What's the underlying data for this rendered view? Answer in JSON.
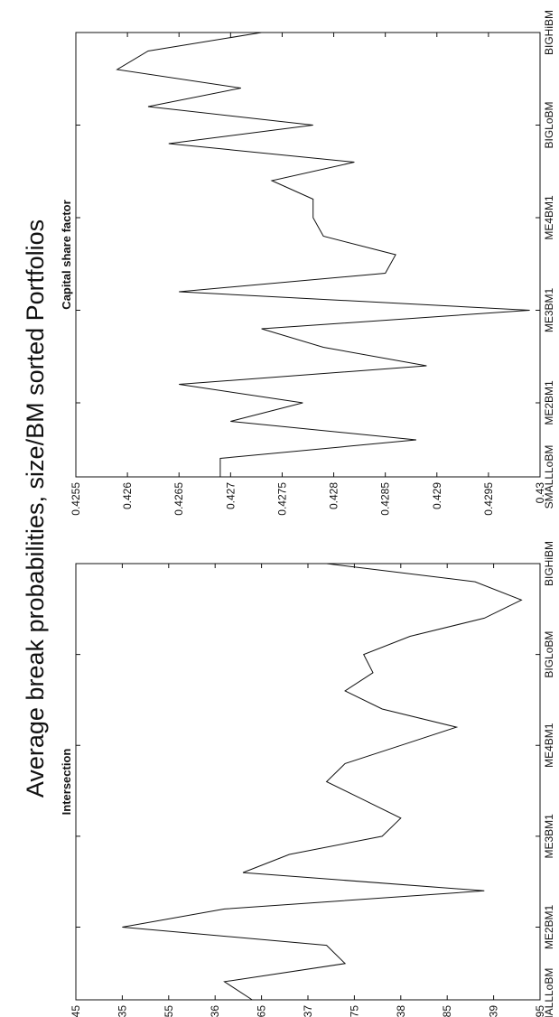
{
  "figure": {
    "title": "Average break probabilities, size/BM sorted Portfolios"
  },
  "chart_data": [
    {
      "type": "line",
      "title": "Intersection",
      "xlabel": "",
      "ylabel": "",
      "grid": false,
      "categories": [
        "SMALLLoBM",
        "ME2BM1",
        "ME3BM1",
        "ME4BM1",
        "BIGLoBM",
        "BIGHiBM"
      ],
      "x": [
        1,
        2,
        3,
        4,
        5,
        6,
        7,
        8,
        9,
        10,
        11,
        12,
        13,
        14,
        15,
        16,
        17,
        18,
        19,
        20,
        21,
        22,
        23,
        24,
        25
      ],
      "ylim": [
        0.4345,
        0.4395
      ],
      "yticks": [
        0.4345,
        0.435,
        0.4355,
        0.436,
        0.4365,
        0.437,
        0.4375,
        0.438,
        0.4385,
        0.439,
        0.4395
      ],
      "xticks": [
        1,
        5,
        10,
        15,
        20,
        25
      ],
      "xtick_labels": [
        "SMALLLoBM",
        "ME2BM1",
        "ME3BM1",
        "ME4BM1",
        "BIGLoBM",
        "BIGHiBM"
      ],
      "series": [
        {
          "values": [
            0.4364,
            0.4361,
            0.4374,
            0.4372,
            0.435,
            0.4361,
            0.4389,
            0.4363,
            0.4368,
            0.4378,
            0.438,
            0.4376,
            0.4372,
            0.4374,
            0.438,
            0.4386,
            0.4378,
            0.4374,
            0.4377,
            0.4376,
            0.4381,
            0.4389,
            0.4393,
            0.4388,
            0.4372
          ]
        }
      ]
    },
    {
      "type": "line",
      "title": "Capital share factor",
      "xlabel": "",
      "ylabel": "",
      "grid": false,
      "categories": [
        "SMALLLoBM",
        "ME2BM1",
        "ME3BM1",
        "ME4BM1",
        "BIGLoBM",
        "BIGHiBM"
      ],
      "x": [
        1,
        2,
        3,
        4,
        5,
        6,
        7,
        8,
        9,
        10,
        11,
        12,
        13,
        14,
        15,
        16,
        17,
        18,
        19,
        20,
        21,
        22,
        23,
        24,
        25
      ],
      "ylim": [
        0.4255,
        0.43
      ],
      "yticks": [
        0.4255,
        0.426,
        0.4265,
        0.427,
        0.4275,
        0.428,
        0.4285,
        0.429,
        0.4295,
        0.43
      ],
      "xticks": [
        1,
        5,
        10,
        15,
        20,
        25
      ],
      "xtick_labels": [
        "SMALLLoBM",
        "ME2BM1",
        "ME3BM1",
        "ME4BM1",
        "BIGLoBM",
        "BIGHiBM"
      ],
      "series": [
        {
          "values": [
            0.4269,
            0.4269,
            0.4288,
            0.427,
            0.4277,
            0.4265,
            0.4289,
            0.4279,
            0.4273,
            0.4299,
            0.4265,
            0.4285,
            0.4286,
            0.4279,
            0.4278,
            0.4278,
            0.4274,
            0.4282,
            0.4264,
            0.4278,
            0.4262,
            0.4271,
            0.4259,
            0.4262,
            0.4273
          ]
        }
      ]
    }
  ]
}
